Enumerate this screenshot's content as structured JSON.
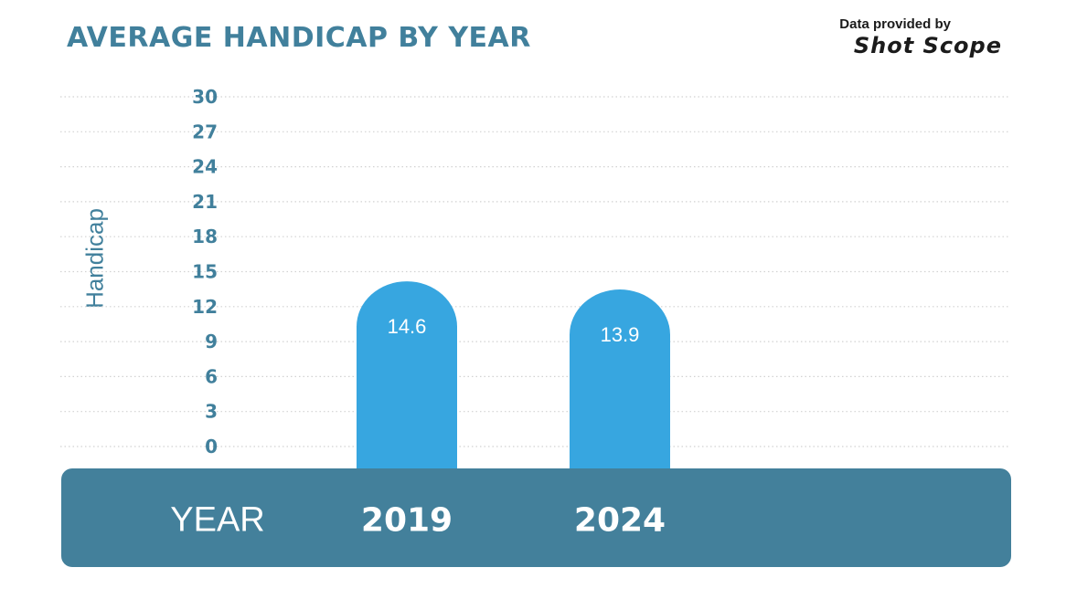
{
  "header": {
    "title": "AVERAGE HANDICAP BY YEAR",
    "credit_line": "Data provided by",
    "credit_brand": "Shot Scope"
  },
  "chart_data": {
    "type": "bar",
    "title": "AVERAGE HANDICAP BY YEAR",
    "xlabel": "YEAR",
    "ylabel": "Handicap",
    "categories": [
      "2019",
      "2024"
    ],
    "values": [
      14.6,
      13.9
    ],
    "value_labels": [
      "14.6",
      "13.9"
    ],
    "ylim": [
      0,
      30
    ],
    "yticks": [
      0,
      3,
      6,
      9,
      12,
      15,
      18,
      21,
      24,
      27,
      30
    ],
    "grid": true,
    "legend": "none"
  },
  "colors": {
    "title": "#41809c",
    "bar": "#37a6e0",
    "band": "#43809b",
    "grid": "#d2d2d2",
    "tick": "#41809c",
    "bar_label": "#ffffff"
  }
}
